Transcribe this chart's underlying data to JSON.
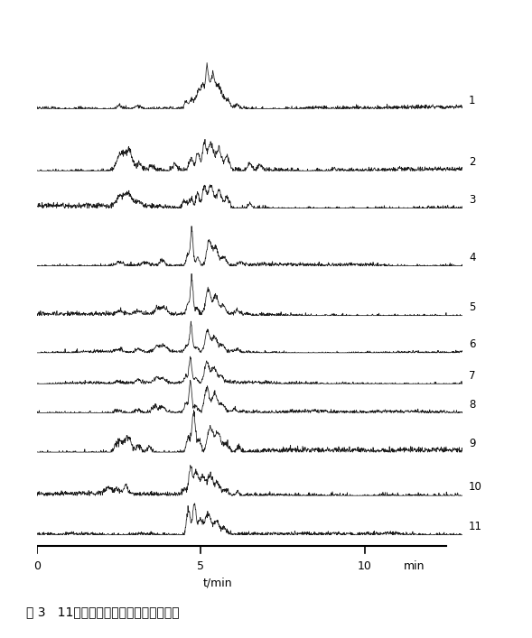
{
  "title": "",
  "xlabel": "t/min",
  "ylabel": "",
  "xmin": 0,
  "xmax": 13.0,
  "num_traces": 11,
  "background_color": "#ffffff",
  "trace_color": "#1a1a1a",
  "caption": "图 3   11批半边旗生药的总离子流色谱图",
  "trace_labels": [
    "1",
    "2",
    "3",
    "4",
    "5",
    "6",
    "7",
    "8",
    "9",
    "10",
    "11"
  ],
  "y_offsets": [
    10.5,
    9.0,
    8.1,
    6.7,
    5.5,
    4.6,
    3.85,
    3.15,
    2.2,
    1.15,
    0.2
  ],
  "trace_heights": [
    1.1,
    0.75,
    0.55,
    0.95,
    1.0,
    0.75,
    0.65,
    0.78,
    1.0,
    0.72,
    0.75
  ],
  "noise_levels": [
    0.022,
    0.02,
    0.018,
    0.018,
    0.02,
    0.018,
    0.016,
    0.018,
    0.02,
    0.02,
    0.018
  ]
}
